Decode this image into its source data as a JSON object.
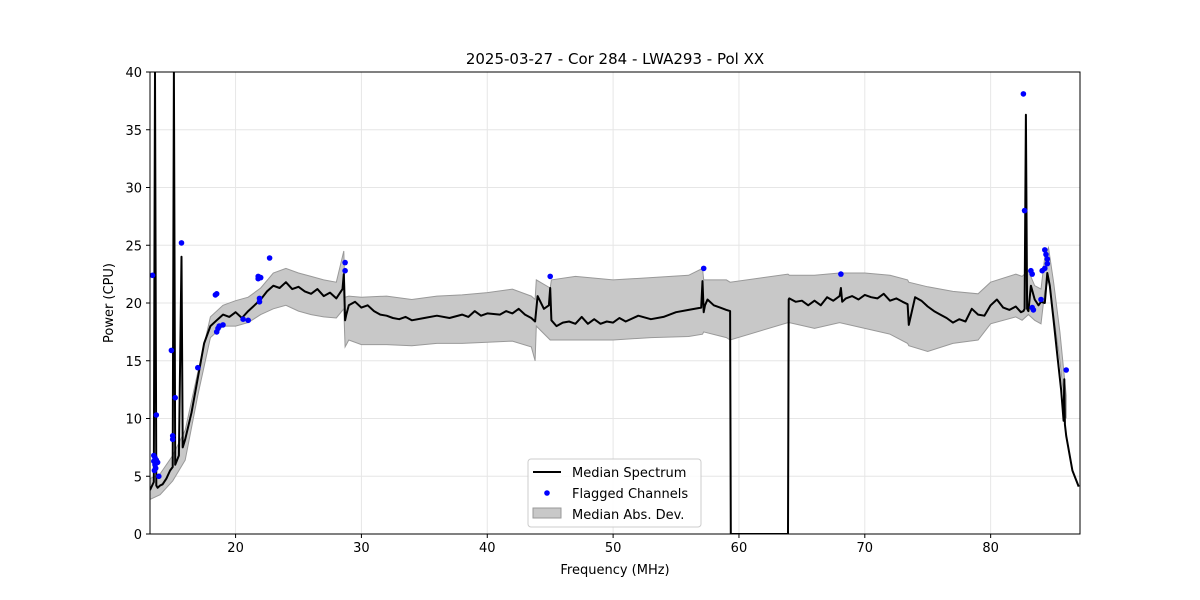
{
  "chart_data": {
    "type": "line",
    "title": "2025-03-27 - Cor 284 - LWA293 - Pol XX",
    "xlabel": "Frequency (MHz)",
    "ylabel": "Power (CPU)",
    "xlim": [
      13.2,
      87.1
    ],
    "ylim": [
      0,
      40
    ],
    "xticks": [
      20,
      30,
      40,
      50,
      60,
      70,
      80
    ],
    "yticks": [
      0,
      5,
      10,
      15,
      20,
      25,
      30,
      35,
      40
    ],
    "grid": true,
    "legend_position": "lower center",
    "legend": [
      {
        "label": "Median Spectrum",
        "kind": "line"
      },
      {
        "label": "Flagged Channels",
        "kind": "dot"
      },
      {
        "label": "Median Abs. Dev.",
        "kind": "fill"
      }
    ],
    "colors": {
      "median": "#000000",
      "flagged": "#0000ff",
      "mad_fill": "#c8c8c8",
      "mad_edge": "#999999",
      "grid": "#e6e6e6"
    },
    "median_spectrum": {
      "x": [
        13.2,
        13.5,
        13.6,
        13.7,
        13.8,
        14.0,
        14.2,
        14.5,
        14.8,
        15.0,
        15.1,
        15.2,
        15.5,
        15.7,
        15.8,
        16.0,
        16.5,
        17.0,
        17.5,
        18.0,
        18.5,
        19.0,
        19.5,
        20.0,
        20.5,
        21.0,
        21.5,
        22.0,
        22.5,
        23.0,
        23.5,
        24.0,
        24.5,
        25.0,
        25.5,
        26.0,
        26.5,
        27.0,
        27.5,
        28.0,
        28.5,
        28.6,
        28.7,
        28.8,
        29.0,
        29.5,
        30.0,
        30.5,
        31.0,
        31.5,
        32.0,
        32.5,
        33.0,
        33.5,
        34.0,
        35.0,
        36.0,
        37.0,
        38.0,
        38.5,
        39.0,
        39.5,
        40.0,
        41.0,
        41.5,
        42.0,
        42.5,
        43.0,
        43.5,
        43.8,
        44.0,
        44.5,
        44.9,
        45.0,
        45.1,
        45.5,
        46.0,
        46.5,
        47.0,
        47.5,
        48.0,
        48.5,
        49.0,
        49.5,
        50.0,
        50.5,
        51.0,
        52.0,
        53.0,
        54.0,
        55.0,
        56.0,
        57.0,
        57.1,
        57.2,
        57.3,
        57.5,
        58.0,
        58.5,
        59.0,
        59.3,
        59.35,
        63.9,
        63.95,
        64.0,
        64.5,
        65.0,
        65.5,
        66.0,
        66.5,
        67.0,
        67.5,
        68.0,
        68.1,
        68.2,
        68.5,
        69.0,
        69.5,
        70.0,
        70.5,
        71.0,
        71.5,
        72.0,
        72.5,
        73.0,
        73.4,
        73.5,
        74.0,
        74.5,
        75.0,
        75.5,
        76.0,
        76.5,
        77.0,
        77.5,
        78.0,
        78.5,
        79.0,
        79.5,
        80.0,
        80.5,
        81.0,
        81.5,
        82.0,
        82.4,
        82.6,
        82.7,
        82.8,
        82.9,
        83.0,
        83.2,
        83.5,
        83.8,
        84.0,
        84.3,
        84.5,
        84.7,
        85.0,
        85.3,
        85.6,
        85.8,
        85.85,
        85.9,
        86.0,
        86.5,
        87.0
      ],
      "y": [
        3.8,
        4.5,
        40,
        4.2,
        4.0,
        4.2,
        4.3,
        4.8,
        5.5,
        5.8,
        40,
        6.0,
        6.8,
        24,
        7.5,
        8.2,
        10.5,
        13.5,
        16.5,
        18.0,
        18.5,
        19.0,
        18.8,
        19.2,
        18.7,
        19.3,
        19.8,
        20.3,
        21.0,
        21.5,
        21.3,
        21.8,
        21.2,
        21.4,
        21.0,
        20.8,
        21.2,
        20.6,
        20.9,
        20.4,
        21.2,
        22.5,
        18.5,
        19.0,
        19.8,
        20.1,
        19.6,
        19.8,
        19.3,
        19.0,
        18.9,
        18.7,
        18.6,
        18.8,
        18.5,
        18.7,
        18.9,
        18.7,
        19.0,
        18.8,
        19.3,
        18.9,
        19.1,
        19.0,
        19.3,
        19.1,
        19.5,
        19.0,
        18.7,
        18.4,
        20.6,
        19.5,
        19.8,
        21.3,
        18.5,
        18.0,
        18.3,
        18.4,
        18.2,
        18.8,
        18.2,
        18.6,
        18.2,
        18.4,
        18.3,
        18.7,
        18.4,
        18.9,
        18.6,
        18.8,
        19.2,
        19.4,
        19.6,
        21.9,
        19.2,
        19.8,
        20.3,
        19.8,
        19.6,
        19.4,
        19.3,
        0,
        0,
        20.3,
        20.4,
        20.1,
        20.2,
        19.8,
        20.2,
        19.8,
        20.5,
        20.2,
        20.6,
        21.3,
        20.1,
        20.4,
        20.6,
        20.3,
        20.7,
        20.5,
        20.4,
        20.8,
        20.2,
        20.4,
        20.1,
        19.9,
        18.1,
        20.5,
        20.2,
        19.7,
        19.3,
        19.0,
        18.7,
        18.3,
        18.6,
        18.4,
        19.5,
        19.0,
        18.9,
        19.8,
        20.3,
        19.6,
        19.4,
        19.7,
        19.2,
        19.3,
        19.5,
        36.3,
        19.5,
        19.3,
        21.5,
        20.3,
        19.8,
        20.1,
        20.0,
        22.6,
        21.5,
        18.5,
        15.5,
        12.5,
        9.8,
        13.4,
        9.5,
        8.5,
        5.5,
        4.1
      ]
    },
    "mad_band": {
      "x": [
        13.2,
        14.0,
        15.0,
        16.0,
        17.0,
        18.0,
        19.0,
        20.0,
        21.0,
        22.0,
        23.0,
        24.0,
        25.0,
        26.0,
        27.0,
        28.0,
        28.6,
        28.7,
        29.0,
        30.0,
        32.0,
        34.0,
        36.0,
        38.0,
        40.0,
        42.0,
        43.5,
        43.8,
        43.9,
        45.0,
        45.1,
        47.0,
        50.0,
        53.0,
        56.0,
        57.1,
        57.2,
        59.0,
        59.3,
        63.9,
        64.0,
        66.0,
        68.0,
        70.0,
        72.0,
        73.4,
        73.5,
        75.0,
        77.0,
        79.0,
        80.0,
        82.0,
        82.5,
        83.0,
        83.5,
        84.0,
        84.3,
        84.6,
        85.0,
        85.5,
        86.0
      ],
      "upper": [
        4.8,
        5.2,
        6.8,
        9.0,
        14.0,
        18.8,
        19.8,
        20.2,
        20.5,
        21.3,
        22.6,
        23.0,
        22.6,
        22.3,
        22.0,
        21.8,
        24.5,
        20.5,
        20.6,
        20.5,
        20.6,
        20.3,
        20.6,
        20.7,
        20.9,
        21.2,
        20.6,
        20.3,
        22.0,
        21.3,
        22.0,
        22.3,
        22.0,
        22.2,
        22.4,
        23.0,
        22.0,
        22.0,
        21.8,
        22.5,
        22.4,
        22.4,
        22.6,
        22.6,
        22.4,
        22.0,
        21.8,
        21.4,
        21.0,
        20.8,
        21.8,
        22.5,
        22.3,
        22.8,
        21.5,
        21.2,
        24.0,
        24.8,
        21.8,
        17.5,
        12.0
      ],
      "lower": [
        3.0,
        3.4,
        4.6,
        6.4,
        12.0,
        17.0,
        18.0,
        18.0,
        18.3,
        19.0,
        19.5,
        19.8,
        19.3,
        19.0,
        18.8,
        18.7,
        19.5,
        16.2,
        16.8,
        16.4,
        16.4,
        16.3,
        16.5,
        16.5,
        16.6,
        16.7,
        16.2,
        15.0,
        18.0,
        16.8,
        16.8,
        16.8,
        16.8,
        17.0,
        17.1,
        17.3,
        17.5,
        17.0,
        16.8,
        18.3,
        18.3,
        17.8,
        18.3,
        17.8,
        17.3,
        16.5,
        16.3,
        15.8,
        16.5,
        16.8,
        18.2,
        18.8,
        18.5,
        19.0,
        18.5,
        18.2,
        21.0,
        22.0,
        19.0,
        15.0,
        10.0
      ]
    },
    "flagged_channels": {
      "x": [
        13.4,
        13.5,
        13.5,
        13.55,
        13.6,
        13.6,
        13.65,
        13.7,
        13.7,
        13.8,
        13.9,
        14.9,
        15.0,
        15.0,
        15.2,
        15.7,
        17.0,
        18.4,
        18.5,
        18.5,
        18.6,
        18.7,
        19.0,
        20.6,
        21.0,
        21.8,
        21.8,
        21.9,
        21.9,
        22.0,
        22.7,
        28.7,
        28.7,
        45.0,
        57.2,
        68.1,
        82.6,
        82.7,
        83.2,
        83.3,
        83.3,
        83.4,
        84.0,
        84.1,
        84.3,
        84.3,
        84.4,
        84.5,
        84.5,
        86.0
      ],
      "y": [
        22.4,
        6.8,
        6.3,
        5.5,
        6.6,
        6.0,
        5.7,
        6.4,
        10.3,
        6.2,
        5.0,
        15.9,
        8.5,
        8.2,
        11.8,
        25.2,
        14.4,
        20.7,
        20.8,
        17.5,
        17.8,
        18.0,
        18.1,
        18.6,
        18.5,
        22.1,
        22.3,
        20.1,
        20.4,
        22.2,
        23.9,
        23.5,
        22.8,
        22.3,
        23.0,
        22.5,
        38.1,
        28.0,
        22.8,
        22.5,
        19.6,
        19.4,
        20.3,
        22.8,
        23.0,
        24.6,
        24.2,
        23.8,
        23.4,
        14.2
      ]
    }
  }
}
